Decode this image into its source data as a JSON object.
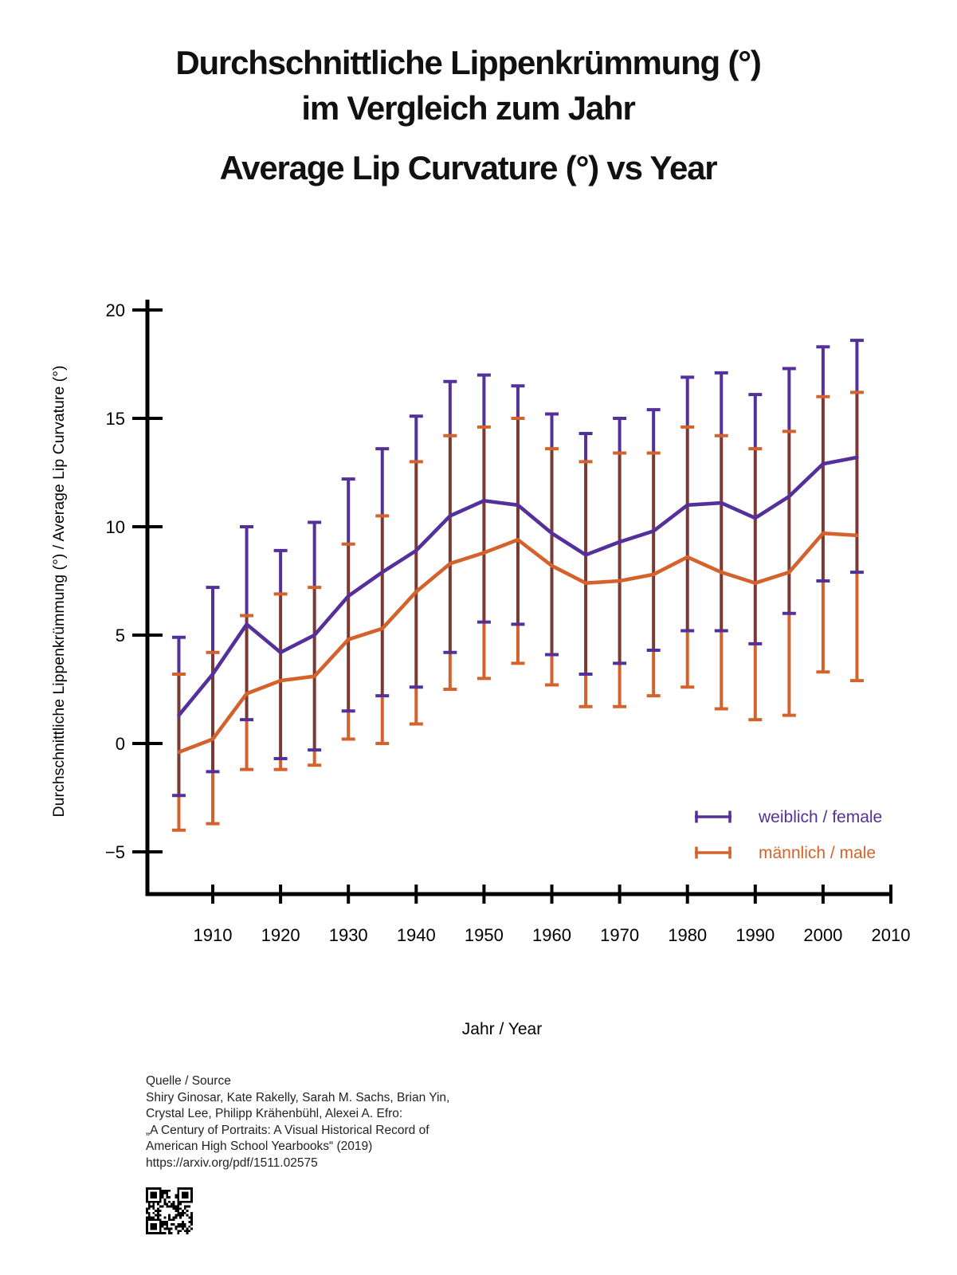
{
  "title": {
    "de_line1": "Durchschnittliche Lippenkrümmung (°)",
    "de_line2": "im Vergleich zum Jahr",
    "en": "Average Lip Curvature (°) vs Year"
  },
  "chart_data": {
    "type": "line",
    "title": "Durchschnittliche Lippenkrümmung (°) im Vergleich zum Jahr / Average Lip Curvature (°) vs Year",
    "xlabel": "Jahr / Year",
    "ylabel": "Durchschnittliche Lippenkrümmung (°) / Average Lip Curvature (°)",
    "xlim": [
      1905,
      2010
    ],
    "ylim": [
      -5,
      20
    ],
    "grid": false,
    "legend_position": "lower-right",
    "xticks": [
      1910,
      1920,
      1930,
      1940,
      1950,
      1960,
      1970,
      1980,
      1990,
      2000,
      2010
    ],
    "ytick_values": [
      20,
      15,
      10,
      5,
      0,
      -5
    ],
    "ytick_labels": [
      "20",
      "15",
      "10",
      "5",
      "0",
      "−5"
    ],
    "x": [
      1905,
      1910,
      1915,
      1920,
      1925,
      1930,
      1935,
      1940,
      1945,
      1950,
      1955,
      1960,
      1965,
      1970,
      1975,
      1980,
      1985,
      1990,
      1995,
      2000,
      2005
    ],
    "overlap_color": "#7a3a33",
    "series": [
      {
        "name": "weiblich / female",
        "color": "#53309a",
        "values": [
          1.3,
          3.2,
          5.5,
          4.2,
          5.0,
          6.8,
          7.9,
          8.9,
          10.5,
          11.2,
          11.0,
          9.7,
          8.7,
          9.3,
          9.8,
          11.0,
          11.1,
          10.4,
          11.4,
          12.9,
          13.2
        ],
        "err_high": [
          4.9,
          7.2,
          10.0,
          8.9,
          10.2,
          12.2,
          13.6,
          15.1,
          16.7,
          17.0,
          16.5,
          15.2,
          14.3,
          15.0,
          15.4,
          16.9,
          17.1,
          16.1,
          17.3,
          18.3,
          18.6
        ],
        "err_low": [
          -2.4,
          -1.3,
          1.1,
          -0.7,
          -0.3,
          1.5,
          2.2,
          2.6,
          4.2,
          5.6,
          5.5,
          4.1,
          3.2,
          3.7,
          4.3,
          5.2,
          5.2,
          4.6,
          6.0,
          7.5,
          7.9
        ]
      },
      {
        "name": "männlich / male",
        "color": "#d4622c",
        "values": [
          -0.4,
          0.2,
          2.3,
          2.9,
          3.1,
          4.8,
          5.3,
          7.0,
          8.3,
          8.8,
          9.4,
          8.2,
          7.4,
          7.5,
          7.8,
          8.6,
          7.9,
          7.4,
          7.9,
          9.7,
          9.6
        ],
        "err_high": [
          3.2,
          4.2,
          5.9,
          6.9,
          7.2,
          9.2,
          10.5,
          13.0,
          14.2,
          14.6,
          15.0,
          13.6,
          13.0,
          13.4,
          13.4,
          14.6,
          14.2,
          13.6,
          14.4,
          16.0,
          16.2
        ],
        "err_low": [
          -4.0,
          -3.7,
          -1.2,
          -1.2,
          -1.0,
          0.2,
          0.0,
          0.9,
          2.5,
          3.0,
          3.7,
          2.7,
          1.7,
          1.7,
          2.2,
          2.6,
          1.6,
          1.1,
          1.3,
          3.3,
          2.9
        ]
      }
    ]
  },
  "source": {
    "lines": [
      "Quelle / Source",
      "Shiry Ginosar, Kate Rakelly, Sarah M. Sachs, Brian Yin,",
      "Crystal Lee, Philipp Krähenbühl, Alexei A. Efro:",
      "„A Century of Portraits: A Visual Historical Record of",
      "American High School Yearbooks“ (2019)",
      "https://arxiv.org/pdf/1511.02575"
    ]
  }
}
